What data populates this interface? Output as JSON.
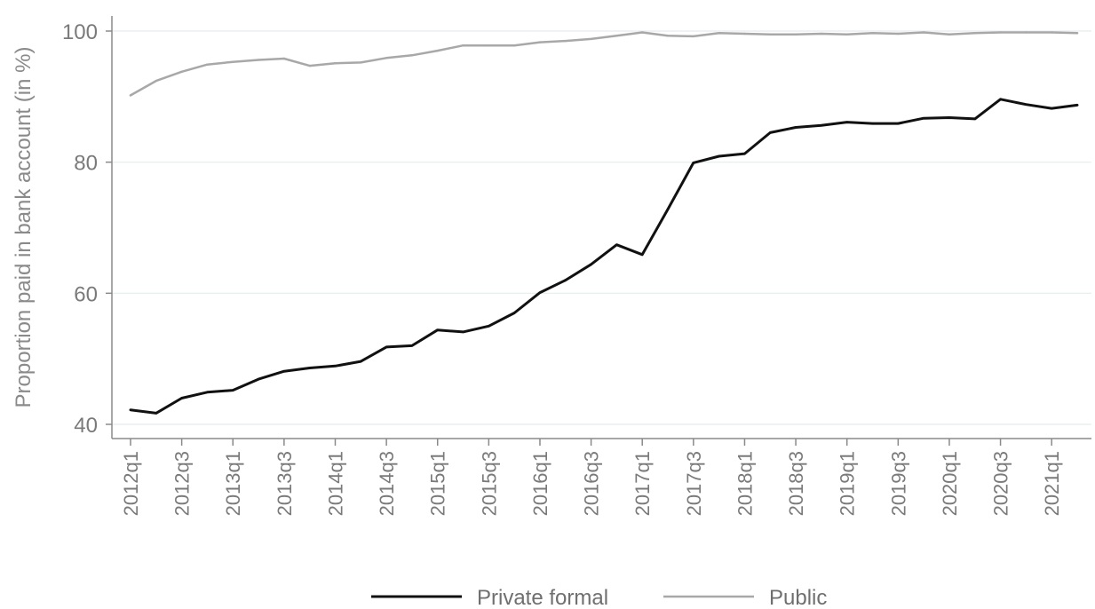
{
  "chart_data": {
    "type": "line",
    "ylabel": "Proportion paid in bank account (in %)",
    "xlabel": "",
    "ylim": [
      39,
      102
    ],
    "yticks": [
      40,
      60,
      80,
      100
    ],
    "grid": "horizontal",
    "legend_position": "bottom-center",
    "x": [
      "2012q1",
      "2012q2",
      "2012q3",
      "2012q4",
      "2013q1",
      "2013q2",
      "2013q3",
      "2013q4",
      "2014q1",
      "2014q2",
      "2014q3",
      "2014q4",
      "2015q1",
      "2015q2",
      "2015q3",
      "2015q4",
      "2016q1",
      "2016q2",
      "2016q3",
      "2016q4",
      "2017q1",
      "2017q2",
      "2017q3",
      "2017q4",
      "2018q1",
      "2018q2",
      "2018q3",
      "2018q4",
      "2019q1",
      "2019q2",
      "2019q3",
      "2019q4",
      "2020q1",
      "2020q2",
      "2020q3",
      "2020q4",
      "2021q1",
      "2021q2"
    ],
    "xtick_labels": [
      "2012q1",
      "2012q3",
      "2013q1",
      "2013q3",
      "2014q1",
      "2014q3",
      "2015q1",
      "2015q3",
      "2016q1",
      "2016q3",
      "2017q1",
      "2017q3",
      "2018q1",
      "2018q3",
      "2019q1",
      "2019q3",
      "2020q1",
      "2020q3",
      "2021q1"
    ],
    "series": [
      {
        "name": "Private formal",
        "color": "#111111",
        "values": [
          42.2,
          41.7,
          44.0,
          44.9,
          45.2,
          46.9,
          48.1,
          48.6,
          48.9,
          49.6,
          51.8,
          52.0,
          54.4,
          54.1,
          55.0,
          57.0,
          60.1,
          62.0,
          64.4,
          67.4,
          65.9,
          72.8,
          79.9,
          80.9,
          81.3,
          84.5,
          85.3,
          85.6,
          86.1,
          85.9,
          85.9,
          86.7,
          86.8,
          86.6,
          89.6,
          88.8,
          88.2,
          88.7
        ]
      },
      {
        "name": "Public",
        "color": "#a8a8a8",
        "values": [
          90.2,
          92.4,
          93.8,
          94.9,
          95.3,
          95.6,
          95.8,
          94.7,
          95.1,
          95.2,
          95.9,
          96.3,
          97.0,
          97.8,
          97.8,
          97.8,
          98.3,
          98.5,
          98.8,
          99.3,
          99.8,
          99.3,
          99.2,
          99.7,
          99.6,
          99.5,
          99.5,
          99.6,
          99.5,
          99.7,
          99.6,
          99.8,
          99.5,
          99.7,
          99.8,
          99.8,
          99.8,
          99.7
        ]
      }
    ]
  }
}
